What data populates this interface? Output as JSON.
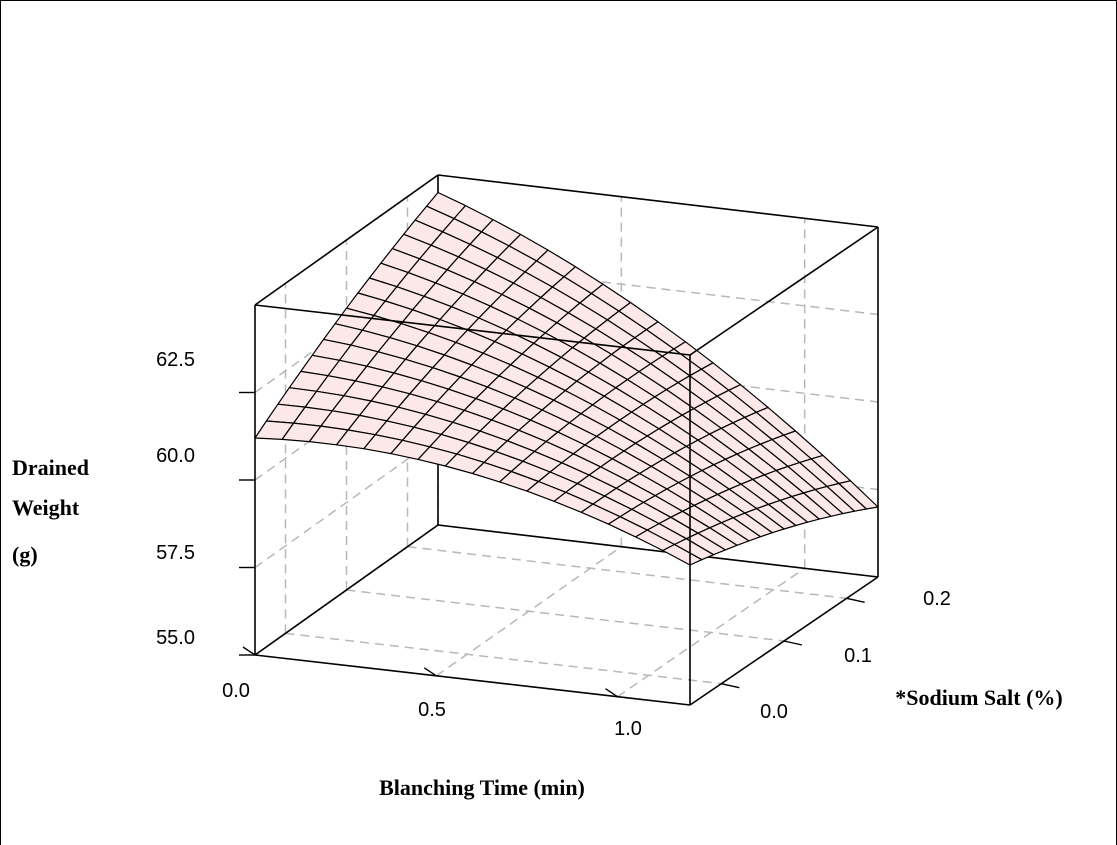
{
  "chart_data": {
    "type": "surface",
    "title": "",
    "xlabel": "Blanching Time (min)",
    "ylabel": "*Sodium Salt (%)",
    "zlabel": [
      "Drained",
      "Weight",
      "(g)"
    ],
    "x_ticks": [
      "0.0",
      "0.5",
      "1.0"
    ],
    "y_ticks": [
      "0.0",
      "0.1",
      "0.2"
    ],
    "z_ticks": [
      "55.0",
      "57.5",
      "60.0",
      "62.5"
    ],
    "x_range": [
      0,
      1.2
    ],
    "y_range": [
      -0.05,
      0.25
    ],
    "z_range": [
      55,
      65
    ],
    "grid": true,
    "surface": {
      "corner_values": {
        "x0_y0": 61.2,
        "x1_y0": 59.0,
        "x0_y1": 64.5,
        "x1_y1": 57.0
      },
      "peak": {
        "x": 0.05,
        "y": 0.25,
        "z": 64.5
      }
    }
  }
}
